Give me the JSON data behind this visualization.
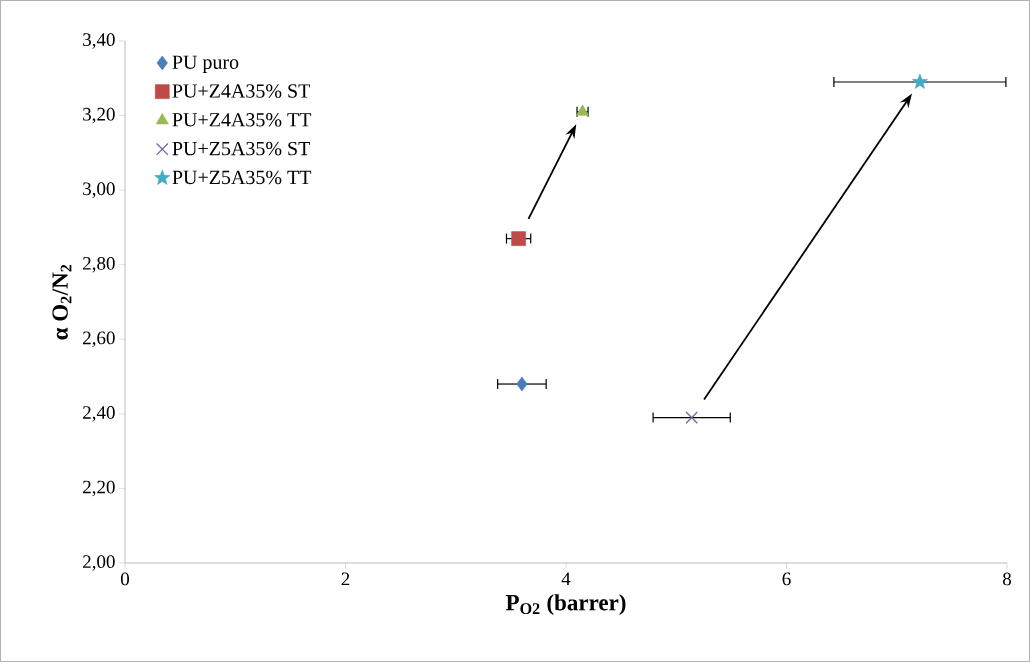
{
  "chart_data": {
    "type": "scatter",
    "xlabel": "P$_{O2}$ (barrer)",
    "ylabel": "α O$_{2}$/N$_{2}$",
    "xlim": [
      0,
      8
    ],
    "ylim": [
      2.0,
      3.4
    ],
    "xticks": [
      0,
      2,
      4,
      6,
      8
    ],
    "yticks": [
      {
        "value": 2.0,
        "label": "2,00"
      },
      {
        "value": 2.2,
        "label": "2,20"
      },
      {
        "value": 2.4,
        "label": "2,40"
      },
      {
        "value": 2.6,
        "label": "2,60"
      },
      {
        "value": 2.8,
        "label": "2,80"
      },
      {
        "value": 3.0,
        "label": "3,00"
      },
      {
        "value": 3.2,
        "label": "3,20"
      },
      {
        "value": 3.4,
        "label": "3,40"
      }
    ],
    "grid": false,
    "legend": "top left",
    "series": [
      {
        "name": "PU puro",
        "color": "#4a7ebb",
        "marker": "diamond",
        "x": [
          3.6
        ],
        "values": [
          2.48
        ],
        "xerrors": [
          0.22
        ]
      },
      {
        "name": "PU+Z4A35% ST",
        "color": "#be4b48",
        "marker": "square",
        "x": [
          3.57
        ],
        "values": [
          2.87
        ],
        "xerrors": [
          0.11
        ]
      },
      {
        "name": "PU+Z4A35% TT",
        "color": "#98b954",
        "marker": "triangle",
        "x": [
          4.15
        ],
        "values": [
          3.21
        ],
        "xerrors": [
          0.05
        ]
      },
      {
        "name": "PU+Z5A35% ST",
        "color": "#7d60a0",
        "marker": "cross",
        "x": [
          5.14
        ],
        "values": [
          2.39
        ],
        "xerrors": [
          0.35
        ]
      },
      {
        "name": "PU+Z5A35% TT",
        "color": "#46aac5",
        "marker": "star",
        "x": [
          7.21
        ],
        "values": [
          3.29
        ],
        "xerrors": [
          0.78
        ]
      }
    ]
  }
}
